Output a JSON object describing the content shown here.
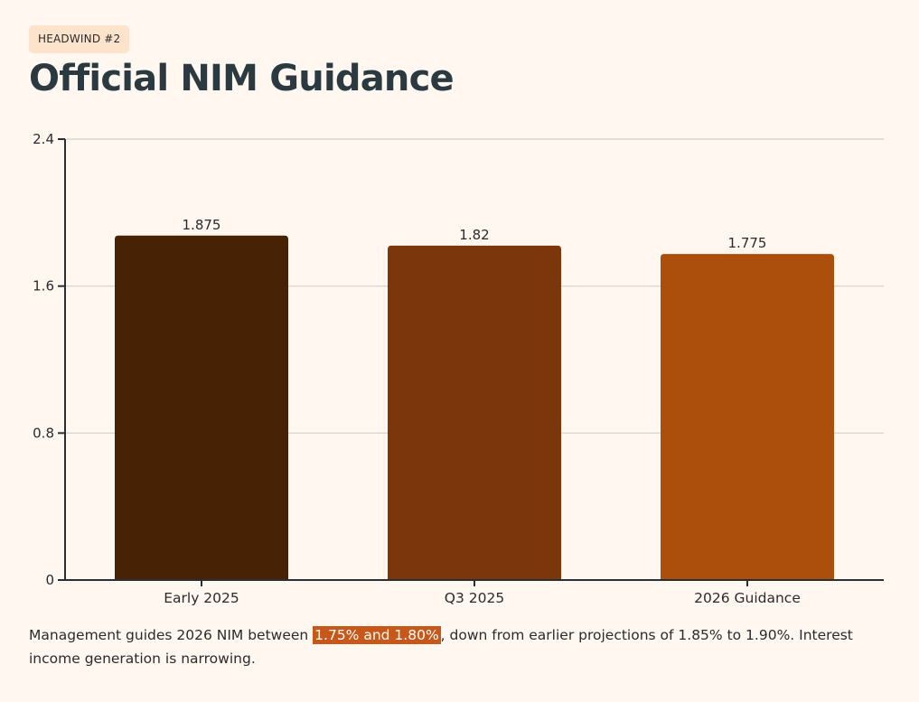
{
  "header": {
    "badge": "HEADWIND #2",
    "title": "Official NIM Guidance"
  },
  "chart_data": {
    "type": "bar",
    "title": "Official NIM Guidance",
    "xlabel": "",
    "ylabel": "",
    "categories": [
      "Early 2025",
      "Q3 2025",
      "2026 Guidance"
    ],
    "values": [
      1.875,
      1.82,
      1.775
    ],
    "value_labels": [
      "1.875",
      "1.82",
      "1.775"
    ],
    "ylim": [
      0,
      2.4
    ],
    "yticks": [
      0,
      0.8,
      1.6,
      2.4
    ],
    "ytick_labels": [
      "0",
      "0.8",
      "1.6",
      "2.4"
    ],
    "grid": true,
    "colors": [
      "#472204",
      "#7b370b",
      "#ad4f0c"
    ]
  },
  "caption": {
    "before": "Management guides 2026 NIM between ",
    "highlight": "1.75% and 1.80%",
    "after": ", down from earlier projections of 1.85% to 1.90%. Interest income generation is narrowing.",
    "highlight_color": "#c8581a"
  }
}
